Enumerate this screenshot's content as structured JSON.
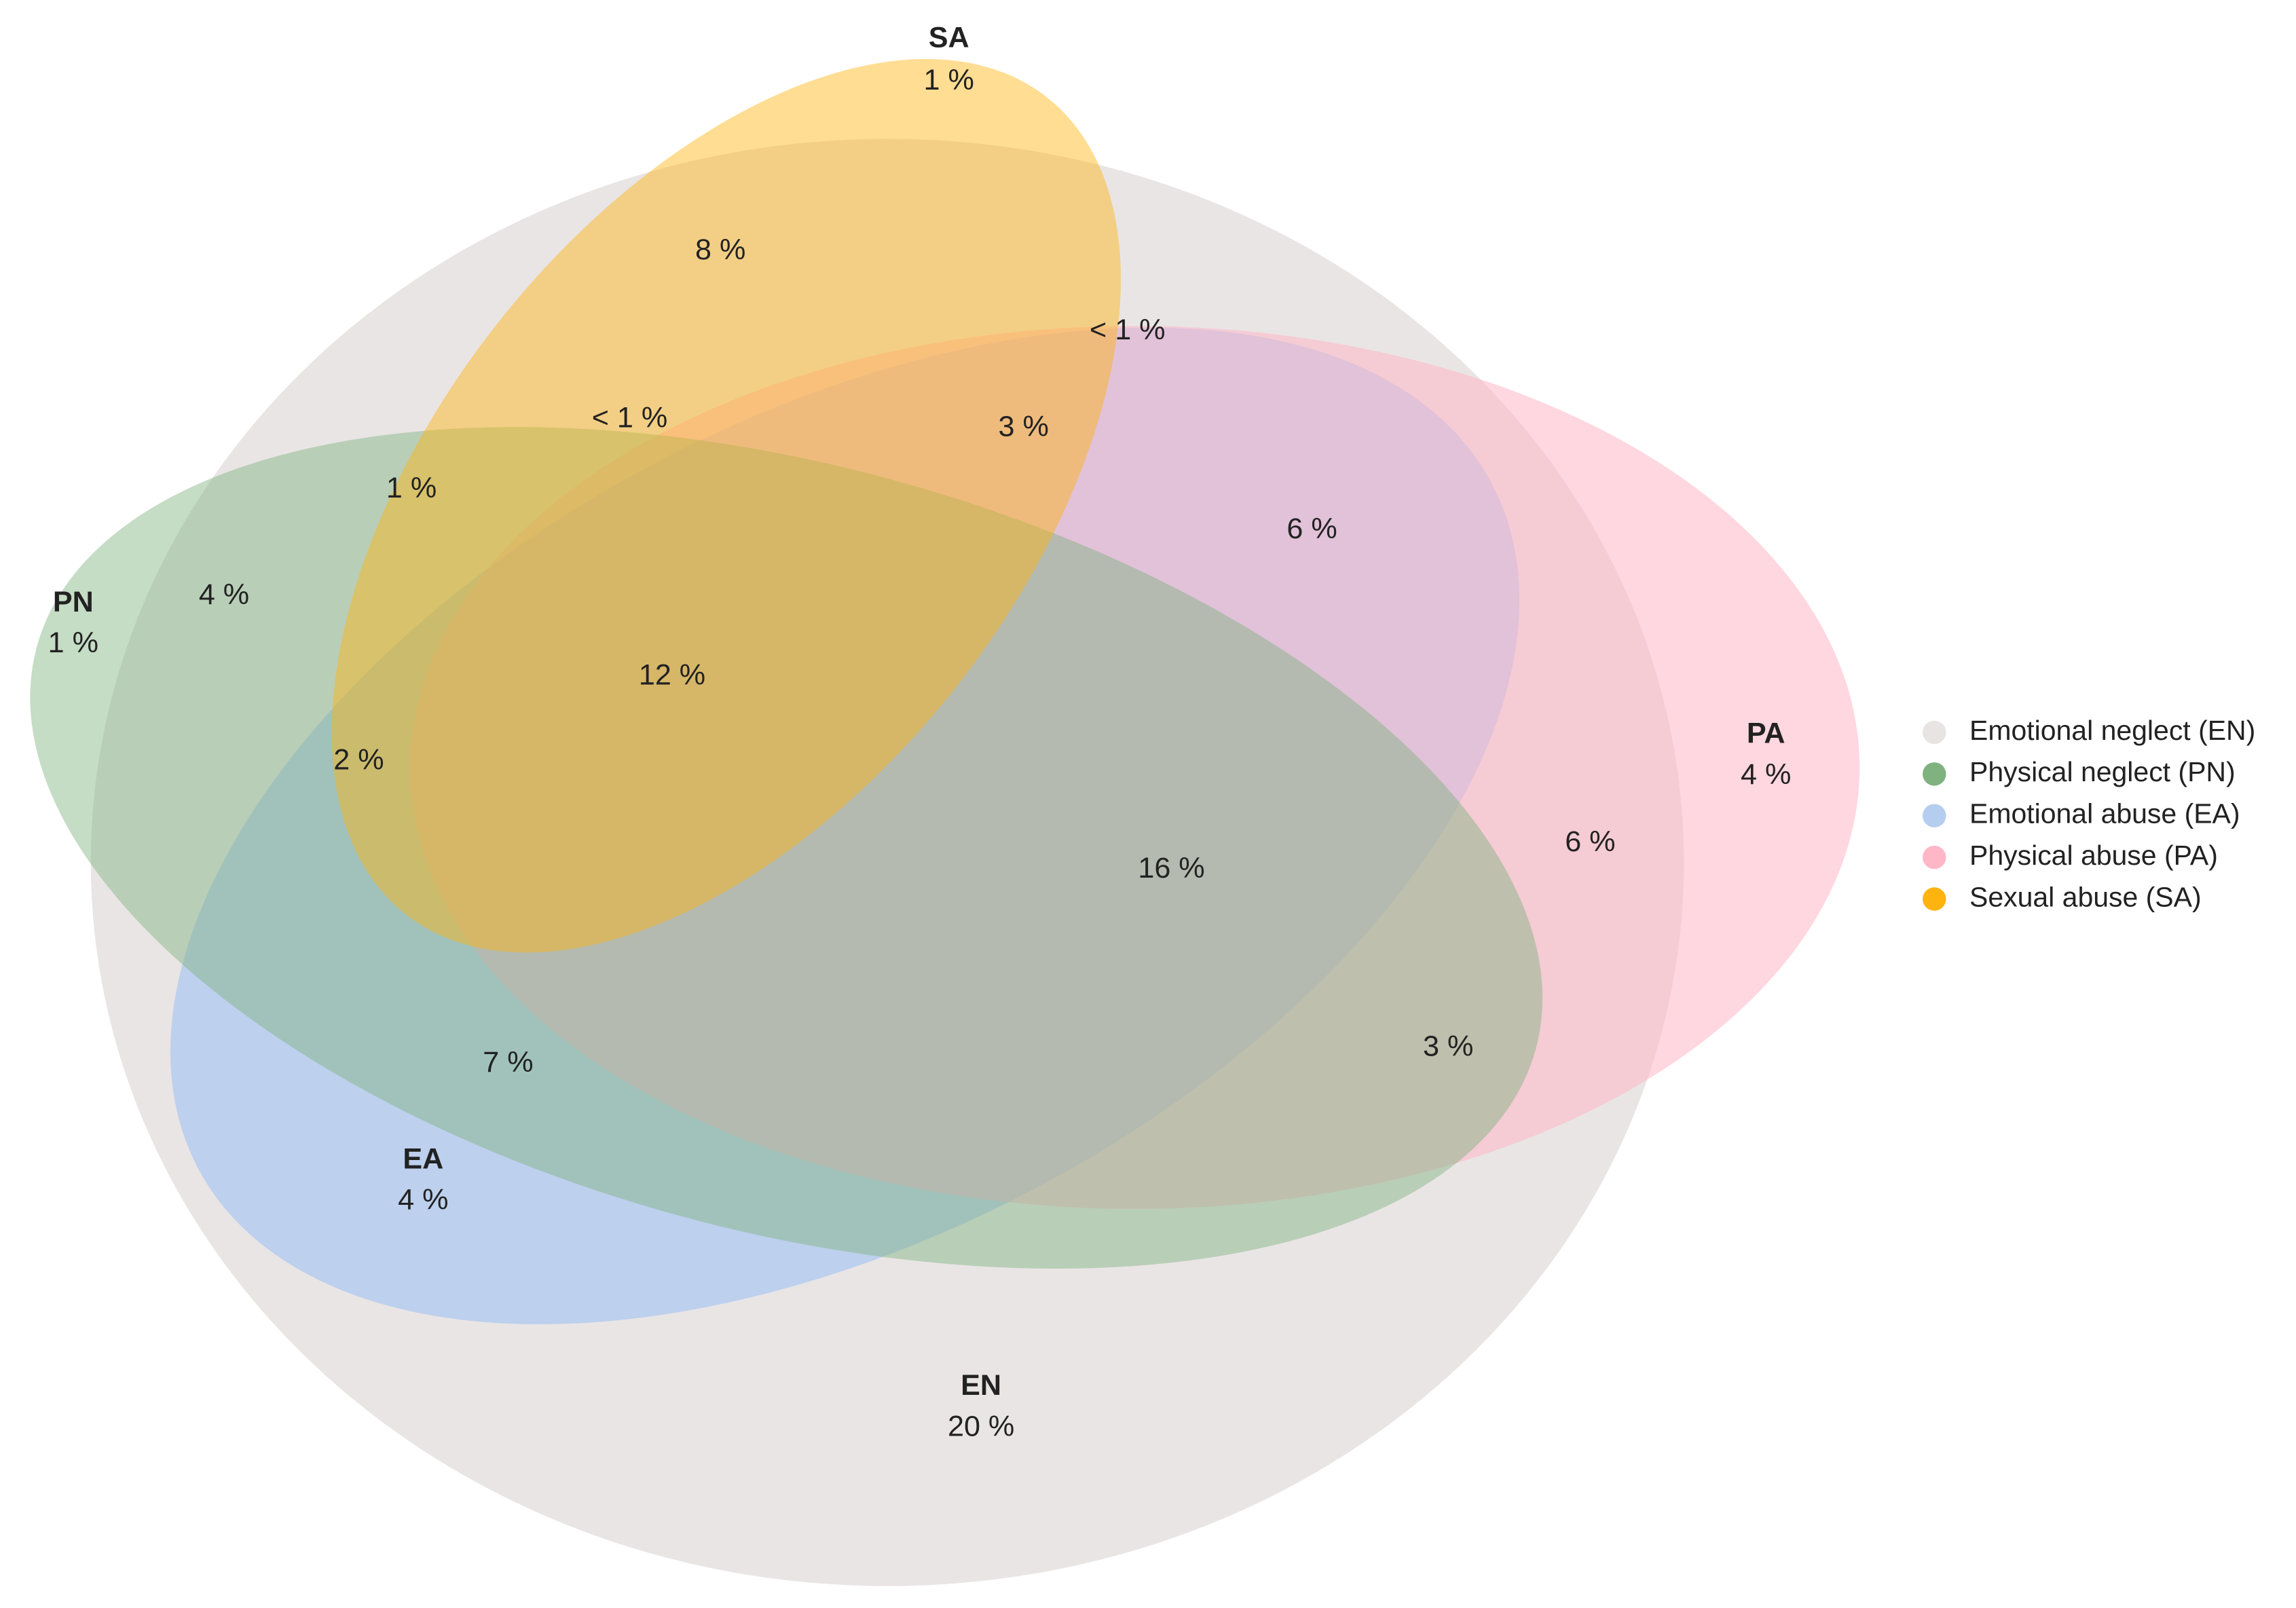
{
  "sets": [
    {
      "abbr": "EN",
      "value": "20 %",
      "legend": "Emotional neglect (EN)",
      "color": "#e8e4e4"
    },
    {
      "abbr": "PN",
      "value": "1 %",
      "legend": "Physical neglect (PN)",
      "color": "#7fb27f"
    },
    {
      "abbr": "EA",
      "value": "4 %",
      "legend": "Emotional abuse (EA)",
      "color": "#b5cdef"
    },
    {
      "abbr": "PA",
      "value": "4 %",
      "legend": "Physical abuse (PA)",
      "color": "#ffb7c7"
    },
    {
      "abbr": "SA",
      "value": "1 %",
      "legend": "Sexual abuse (SA)",
      "color": "#ffb30f"
    }
  ],
  "regions": [
    "8 %",
    "< 1 %",
    "< 1 %",
    "3 %",
    "1 %",
    "6 %",
    "4 %",
    "12 %",
    "2 %",
    "16 %",
    "6 %",
    "7 %",
    "3 %"
  ]
}
